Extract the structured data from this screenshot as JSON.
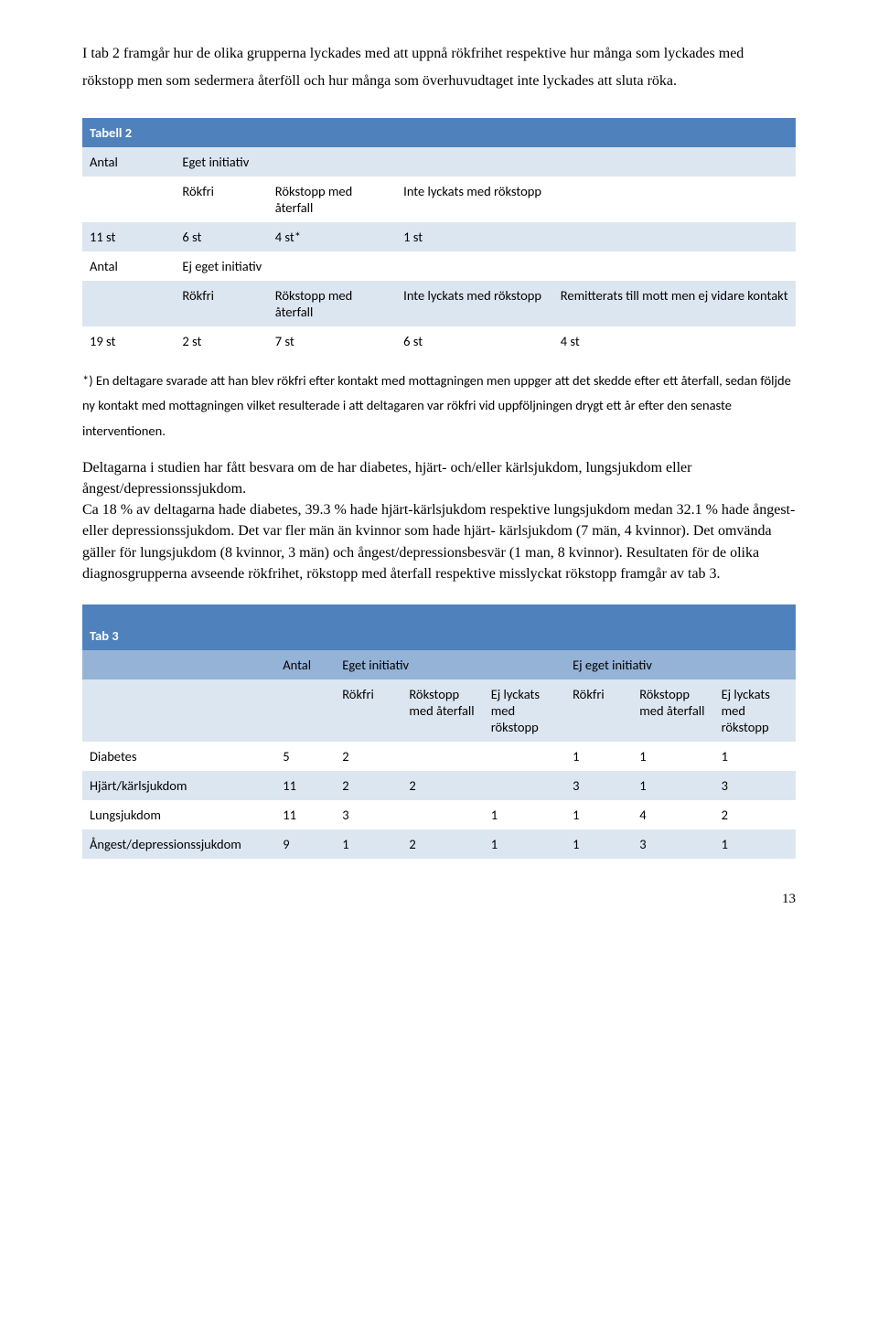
{
  "intro": "I tab 2 framgår hur de olika grupperna lyckades med att uppnå rökfrihet respektive hur många som lyckades med rökstopp men som sedermera återföll och hur många som överhuvudtaget inte lyckades att sluta röka.",
  "table2": {
    "title": "Tabell 2",
    "antal_label": "Antal",
    "eget_initiativ": "Eget initiativ",
    "ej_eget_initiativ": "Ej eget initiativ",
    "col_rokfri": "Rökfri",
    "col_rokstopp": "Rökstopp med återfall",
    "col_inte": "Inte lyckats med rökstopp",
    "col_remit": "Remitterats till mott men ej vidare kontakt",
    "row1": [
      "11 st",
      "6 st",
      "4 st*",
      "1 st"
    ],
    "row2": [
      "19 st",
      "2 st",
      "7 st",
      "6 st",
      "4 st"
    ]
  },
  "footnote": "*) En deltagare svarade att han blev rökfri efter kontakt med mottagningen men uppger att det skedde efter ett återfall, sedan följde ny kontakt med mottagningen vilket resulterade i att deltagaren var rökfri vid uppföljningen drygt ett år efter den senaste interventionen.",
  "body": "Deltagarna i studien har fått besvara om de har diabetes, hjärt- och/eller kärlsjukdom, lungsjukdom eller ångest/depressionssjukdom.\nCa 18 % av deltagarna hade diabetes, 39.3 % hade hjärt-kärlsjukdom respektive lungsjukdom medan 32.1 % hade ångest- eller depressionssjukdom. Det var fler män än kvinnor som hade hjärt- kärlsjukdom (7 män, 4 kvinnor). Det omvända gäller för lungsjukdom (8 kvinnor, 3 män) och ångest/depressionsbesvär (1 man, 8 kvinnor). Resultaten för de olika diagnosgrupperna avseende rökfrihet, rökstopp med återfall respektive  misslyckat rökstopp framgår av tab 3.",
  "table3": {
    "title": "Tab 3",
    "antal_label": "Antal",
    "eget_initiativ": "Eget initiativ",
    "ej_eget_initiativ": "Ej eget initiativ",
    "col_rokfri": "Rökfri",
    "col_rokstopp": "Rökstopp med återfall",
    "col_ej": "Ej lyckats med rökstopp",
    "rows": [
      {
        "name": "Diabetes",
        "vals": [
          "5",
          "2",
          "",
          "",
          "1",
          "1",
          "1"
        ]
      },
      {
        "name": "Hjärt/kärlsjukdom",
        "vals": [
          "11",
          "2",
          "2",
          "",
          "3",
          "1",
          "3"
        ]
      },
      {
        "name": "Lungsjukdom",
        "vals": [
          "11",
          "3",
          "",
          "1",
          "1",
          "4",
          "2"
        ]
      },
      {
        "name": "Ångest/depressionssjukdom",
        "vals": [
          "9",
          "1",
          "2",
          "1",
          "1",
          "3",
          "1"
        ]
      }
    ]
  },
  "pagenum": "13"
}
